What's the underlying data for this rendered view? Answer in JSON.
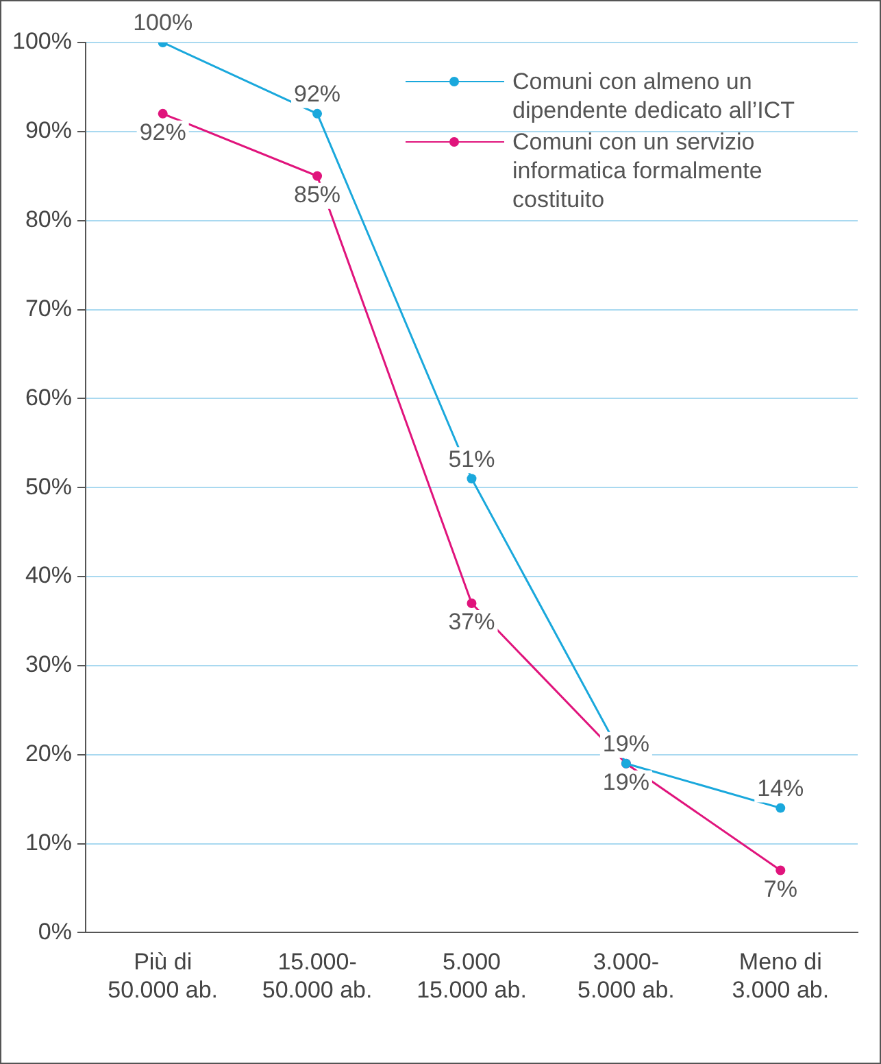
{
  "chart_data": {
    "type": "line",
    "categories": [
      "Più di\n50.000 ab.",
      "15.000-\n50.000 ab.",
      "5.000\n15.000 ab.",
      "3.000-\n5.000 ab.",
      "Meno di\n3.000 ab."
    ],
    "series": [
      {
        "name": "Comuni con almeno un dipendente dedicato all’ICT",
        "color": "#1aa8dc",
        "values": [
          100,
          92,
          51,
          19,
          14
        ],
        "value_labels": [
          "100%",
          "92%",
          "51%",
          "19%",
          "14%"
        ]
      },
      {
        "name": "Comuni con un servizio informatica formalmente costituito",
        "color": "#e0147c",
        "values": [
          92,
          85,
          37,
          19,
          7
        ],
        "value_labels": [
          "92%",
          "85%",
          "37%",
          "19%",
          "7%"
        ]
      }
    ],
    "ylim": [
      0,
      100
    ],
    "yticks": [
      {
        "value": 0,
        "label": "0%"
      },
      {
        "value": 10,
        "label": "10%"
      },
      {
        "value": 20,
        "label": "20%"
      },
      {
        "value": 30,
        "label": "30%"
      },
      {
        "value": 40,
        "label": "40%"
      },
      {
        "value": 50,
        "label": "50%"
      },
      {
        "value": 60,
        "label": "60%"
      },
      {
        "value": 70,
        "label": "70%"
      },
      {
        "value": 80,
        "label": "80%"
      },
      {
        "value": 90,
        "label": "90%"
      },
      {
        "value": 100,
        "label": "100%"
      }
    ],
    "grid": "y",
    "legend": "top right",
    "marker": "circle",
    "line_style": "solid"
  }
}
